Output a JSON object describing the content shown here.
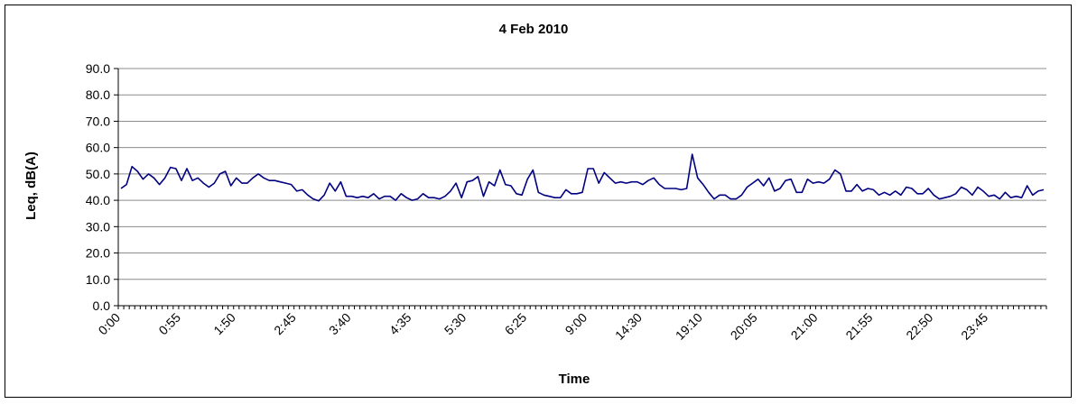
{
  "chart_data": {
    "type": "line",
    "title": "4 Feb 2010",
    "xlabel": "Time",
    "ylabel": "Leq, dB(A)",
    "ylim": [
      0,
      90
    ],
    "y_ticks": [
      "0.0",
      "10.0",
      "20.0",
      "30.0",
      "40.0",
      "50.0",
      "60.0",
      "70.0",
      "80.0",
      "90.0"
    ],
    "x_tick_labels": [
      "0:00",
      "0:55",
      "1:50",
      "2:45",
      "3:40",
      "4:35",
      "5:30",
      "6:25",
      "9:00",
      "14:30",
      "19:10",
      "20:05",
      "21:00",
      "21:55",
      "22:50",
      "23:45"
    ],
    "grid": true,
    "legend": "none",
    "series_color": "#000080",
    "series": [
      {
        "values": [
          44.5,
          46,
          52.8,
          51,
          48,
          50,
          48.5,
          46,
          48.5,
          52.5,
          52,
          47.5,
          52,
          47.5,
          48.5,
          46.5,
          45,
          46.5,
          50,
          51,
          45.5,
          48.5,
          46.5,
          46.5,
          48.5,
          50,
          48.5,
          47.5,
          47.5,
          47,
          46.5,
          46,
          43.5,
          44,
          42,
          40.5,
          39.8,
          42,
          46.5,
          43.5,
          47,
          41.5,
          41.5,
          41,
          41.5,
          41,
          42.5,
          40.5,
          41.5,
          41.5,
          40,
          42.5,
          41,
          40,
          40.5,
          42.5,
          41,
          41,
          40.5,
          41.5,
          43.5,
          46.5,
          41,
          47,
          47.5,
          49,
          41.5,
          47,
          45.5,
          51.5,
          46,
          45.5,
          42.5,
          42,
          48,
          51.5,
          43,
          42,
          41.5,
          41,
          41,
          44,
          42.5,
          42.5,
          43,
          52,
          52,
          46.5,
          50.5,
          48.5,
          46.5,
          47,
          46.5,
          47,
          47,
          46,
          47.5,
          48.5,
          46,
          44.5,
          44.5,
          44.5,
          44,
          44.5,
          57.5,
          48.5,
          46,
          43,
          40.5,
          42,
          42,
          40.5,
          40.5,
          42,
          45,
          46.5,
          48,
          45.5,
          48.5,
          43.5,
          44.5,
          47.5,
          48,
          43,
          43,
          48,
          46.5,
          47,
          46.5,
          48,
          51.5,
          50,
          43.5,
          43.5,
          46,
          43.5,
          44.5,
          44,
          42,
          43,
          42,
          43.5,
          42,
          45,
          44.5,
          42.5,
          42.5,
          44.5,
          42,
          40.5,
          41,
          41.5,
          42.5,
          45,
          44,
          42,
          45,
          43.5,
          41.5,
          42,
          40.5,
          43,
          41,
          41.5,
          41,
          45.5,
          42,
          43.5,
          44
        ]
      }
    ]
  }
}
